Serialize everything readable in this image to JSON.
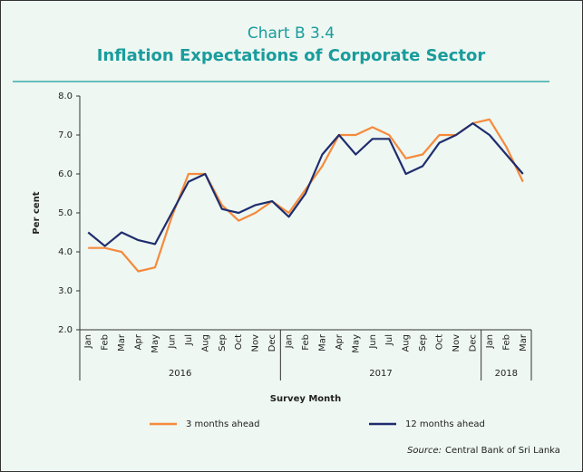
{
  "chart_data": {
    "type": "line",
    "title": "Chart B 3.4",
    "subtitle": "Inflation Expectations of Corporate Sector",
    "y_label": "Per cent",
    "x_label": "Survey Month",
    "categories": [
      "Jan",
      "Feb",
      "Mar",
      "Apr",
      "May",
      "Jun",
      "Jul",
      "Aug",
      "Sep",
      "Oct",
      "Nov",
      "Dec",
      "Jan",
      "Feb",
      "Mar",
      "Apr",
      "May",
      "Jun",
      "Jul",
      "Aug",
      "Sep",
      "Oct",
      "Nov",
      "Dec",
      "Jan",
      "Feb",
      "Mar"
    ],
    "years": [
      "2016",
      "2017",
      "2018"
    ],
    "series": [
      {
        "name": "3 months ahead",
        "color": "#f58a3c",
        "values": [
          4.1,
          4.1,
          4.0,
          3.5,
          3.6,
          4.9,
          6.0,
          6.0,
          5.2,
          4.8,
          5.0,
          5.3,
          5.0,
          5.6,
          6.2,
          7.0,
          7.0,
          7.2,
          7.0,
          6.4,
          6.5,
          7.0,
          7.0,
          7.3,
          7.4,
          6.7,
          5.8
        ]
      },
      {
        "name": "12 months ahead",
        "color": "#1f2d6e",
        "values": [
          4.5,
          4.15,
          4.5,
          4.3,
          4.2,
          5.0,
          5.8,
          6.0,
          5.1,
          5.0,
          5.2,
          5.3,
          4.9,
          5.5,
          6.5,
          7.0,
          6.5,
          6.9,
          6.9,
          6.0,
          6.2,
          6.8,
          7.0,
          7.3,
          7.0,
          6.5,
          6.0
        ]
      }
    ],
    "ylim": [
      2,
      8
    ],
    "yticks": [
      {
        "value": 2,
        "label": "2.0"
      },
      {
        "value": 3,
        "label": "3.0"
      },
      {
        "value": 4,
        "label": "4.0"
      },
      {
        "value": 5,
        "label": "5.0"
      },
      {
        "value": 6,
        "label": "6.0"
      },
      {
        "value": 7,
        "label": "7.0"
      },
      {
        "value": 8,
        "label": "8.0"
      }
    ],
    "grid": false,
    "source_label": "Source:",
    "source": "Central Bank of Sri Lanka"
  }
}
